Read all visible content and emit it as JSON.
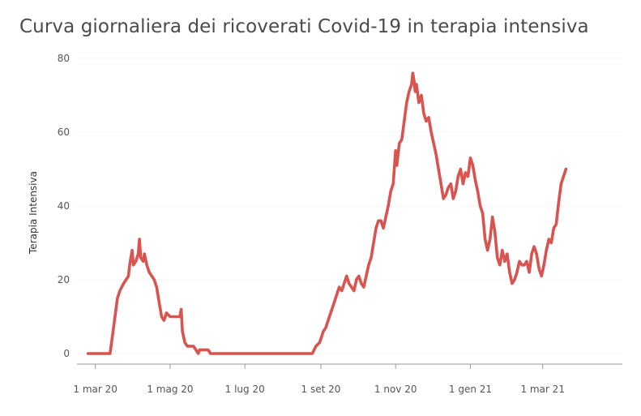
{
  "chart_data": {
    "type": "line",
    "title": "Curva giornaliera dei ricoverati Covid-19 in terapia intensiva",
    "xlabel": "",
    "ylabel": "Terapia Intensiva",
    "ylim": [
      0,
      80
    ],
    "yticks": [
      0,
      20,
      40,
      60,
      80
    ],
    "xlim": [
      "2020-02-15",
      "2021-05-05"
    ],
    "xticks": [
      {
        "date": "2020-03-01",
        "label": "1 mar 20"
      },
      {
        "date": "2020-05-01",
        "label": "1 mag 20"
      },
      {
        "date": "2020-07-01",
        "label": "1 lug 20"
      },
      {
        "date": "2020-09-01",
        "label": "1 set 20"
      },
      {
        "date": "2020-11-01",
        "label": "1 nov 20"
      },
      {
        "date": "2021-01-01",
        "label": "1 gen 21"
      },
      {
        "date": "2021-03-01",
        "label": "1 mar 21"
      }
    ],
    "grid": true,
    "legend": "none",
    "line_color": "#d9534f",
    "series": [
      {
        "name": "",
        "points": [
          [
            "2020-02-24",
            0
          ],
          [
            "2020-03-10",
            0
          ],
          [
            "2020-03-13",
            0
          ],
          [
            "2020-03-15",
            5
          ],
          [
            "2020-03-17",
            10
          ],
          [
            "2020-03-19",
            15
          ],
          [
            "2020-03-21",
            17
          ],
          [
            "2020-03-24",
            19
          ],
          [
            "2020-03-26",
            20
          ],
          [
            "2020-03-28",
            21
          ],
          [
            "2020-03-29",
            24
          ],
          [
            "2020-03-31",
            28
          ],
          [
            "2020-04-01",
            24
          ],
          [
            "2020-04-03",
            25
          ],
          [
            "2020-04-05",
            27
          ],
          [
            "2020-04-06",
            31
          ],
          [
            "2020-04-07",
            26
          ],
          [
            "2020-04-09",
            25
          ],
          [
            "2020-04-10",
            27
          ],
          [
            "2020-04-12",
            24
          ],
          [
            "2020-04-14",
            22
          ],
          [
            "2020-04-16",
            21
          ],
          [
            "2020-04-18",
            20
          ],
          [
            "2020-04-20",
            18
          ],
          [
            "2020-04-22",
            14
          ],
          [
            "2020-04-24",
            10
          ],
          [
            "2020-04-26",
            9
          ],
          [
            "2020-04-28",
            11
          ],
          [
            "2020-05-01",
            10
          ],
          [
            "2020-05-05",
            10
          ],
          [
            "2020-05-09",
            10
          ],
          [
            "2020-05-10",
            12
          ],
          [
            "2020-05-11",
            6
          ],
          [
            "2020-05-13",
            3
          ],
          [
            "2020-05-15",
            2
          ],
          [
            "2020-05-20",
            2
          ],
          [
            "2020-05-22",
            1
          ],
          [
            "2020-05-24",
            0
          ],
          [
            "2020-05-25",
            1
          ],
          [
            "2020-06-01",
            1
          ],
          [
            "2020-06-03",
            0
          ],
          [
            "2020-06-20",
            0
          ],
          [
            "2020-07-20",
            0
          ],
          [
            "2020-08-20",
            0
          ],
          [
            "2020-08-25",
            0
          ],
          [
            "2020-08-28",
            2
          ],
          [
            "2020-08-31",
            3
          ],
          [
            "2020-09-03",
            6
          ],
          [
            "2020-09-05",
            7
          ],
          [
            "2020-09-08",
            10
          ],
          [
            "2020-09-11",
            13
          ],
          [
            "2020-09-14",
            16
          ],
          [
            "2020-09-16",
            18
          ],
          [
            "2020-09-18",
            17
          ],
          [
            "2020-09-20",
            19
          ],
          [
            "2020-09-22",
            21
          ],
          [
            "2020-09-24",
            19
          ],
          [
            "2020-09-26",
            18
          ],
          [
            "2020-09-28",
            17
          ],
          [
            "2020-09-30",
            20
          ],
          [
            "2020-10-02",
            21
          ],
          [
            "2020-10-04",
            19
          ],
          [
            "2020-10-06",
            18
          ],
          [
            "2020-10-08",
            21
          ],
          [
            "2020-10-10",
            24
          ],
          [
            "2020-10-12",
            26
          ],
          [
            "2020-10-14",
            30
          ],
          [
            "2020-10-16",
            34
          ],
          [
            "2020-10-18",
            36
          ],
          [
            "2020-10-20",
            36
          ],
          [
            "2020-10-22",
            34
          ],
          [
            "2020-10-24",
            37
          ],
          [
            "2020-10-26",
            40
          ],
          [
            "2020-10-28",
            44
          ],
          [
            "2020-10-30",
            46
          ],
          [
            "2020-11-01",
            55
          ],
          [
            "2020-11-02",
            51
          ],
          [
            "2020-11-04",
            57
          ],
          [
            "2020-11-06",
            58
          ],
          [
            "2020-11-08",
            63
          ],
          [
            "2020-11-10",
            68
          ],
          [
            "2020-11-12",
            71
          ],
          [
            "2020-11-14",
            73
          ],
          [
            "2020-11-15",
            76
          ],
          [
            "2020-11-16",
            74
          ],
          [
            "2020-11-17",
            71
          ],
          [
            "2020-11-18",
            73
          ],
          [
            "2020-11-20",
            68
          ],
          [
            "2020-11-22",
            70
          ],
          [
            "2020-11-24",
            65
          ],
          [
            "2020-11-26",
            63
          ],
          [
            "2020-11-28",
            64
          ],
          [
            "2020-11-30",
            60
          ],
          [
            "2020-12-02",
            57
          ],
          [
            "2020-12-04",
            54
          ],
          [
            "2020-12-06",
            50
          ],
          [
            "2020-12-08",
            46
          ],
          [
            "2020-12-10",
            42
          ],
          [
            "2020-12-12",
            43
          ],
          [
            "2020-12-14",
            45
          ],
          [
            "2020-12-16",
            46
          ],
          [
            "2020-12-18",
            42
          ],
          [
            "2020-12-20",
            44
          ],
          [
            "2020-12-22",
            48
          ],
          [
            "2020-12-24",
            50
          ],
          [
            "2020-12-26",
            46
          ],
          [
            "2020-12-28",
            49
          ],
          [
            "2020-12-30",
            48
          ],
          [
            "2021-01-01",
            53
          ],
          [
            "2021-01-03",
            51
          ],
          [
            "2021-01-05",
            47
          ],
          [
            "2021-01-07",
            44
          ],
          [
            "2021-01-09",
            40
          ],
          [
            "2021-01-11",
            38
          ],
          [
            "2021-01-13",
            31
          ],
          [
            "2021-01-15",
            28
          ],
          [
            "2021-01-17",
            31
          ],
          [
            "2021-01-19",
            37
          ],
          [
            "2021-01-21",
            33
          ],
          [
            "2021-01-23",
            26
          ],
          [
            "2021-01-25",
            24
          ],
          [
            "2021-01-27",
            28
          ],
          [
            "2021-01-29",
            25
          ],
          [
            "2021-01-31",
            27
          ],
          [
            "2021-02-02",
            22
          ],
          [
            "2021-02-04",
            19
          ],
          [
            "2021-02-06",
            20
          ],
          [
            "2021-02-08",
            22
          ],
          [
            "2021-02-10",
            25
          ],
          [
            "2021-02-12",
            24
          ],
          [
            "2021-02-14",
            24
          ],
          [
            "2021-02-16",
            25
          ],
          [
            "2021-02-18",
            22
          ],
          [
            "2021-02-20",
            27
          ],
          [
            "2021-02-22",
            29
          ],
          [
            "2021-02-24",
            27
          ],
          [
            "2021-02-26",
            23
          ],
          [
            "2021-02-28",
            21
          ],
          [
            "2021-03-02",
            24
          ],
          [
            "2021-03-04",
            28
          ],
          [
            "2021-03-06",
            31
          ],
          [
            "2021-03-08",
            30
          ],
          [
            "2021-03-10",
            34
          ],
          [
            "2021-03-12",
            35
          ],
          [
            "2021-03-14",
            41
          ],
          [
            "2021-03-16",
            46
          ],
          [
            "2021-03-18",
            48
          ],
          [
            "2021-03-20",
            50
          ]
        ]
      }
    ]
  }
}
